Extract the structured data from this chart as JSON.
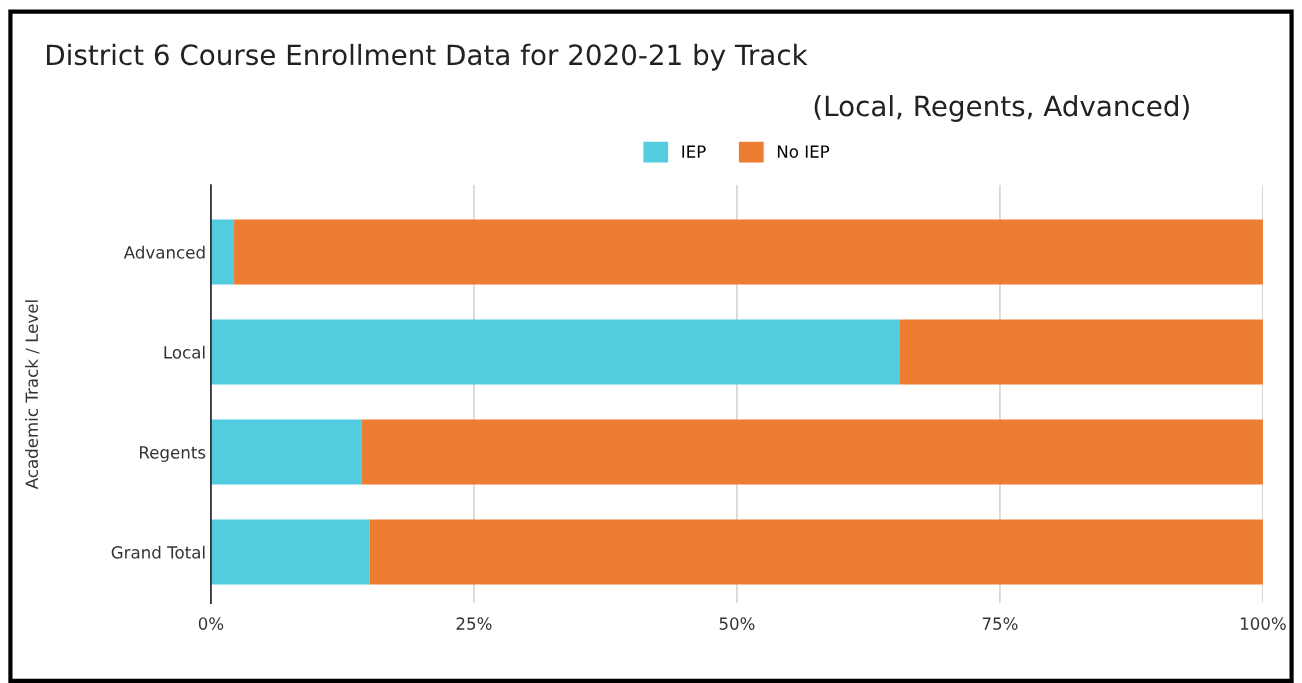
{
  "chart_data": {
    "type": "bar",
    "orientation": "horizontal",
    "stacked": true,
    "title": "District 6 Course Enrollment Data for 2020-21 by Track",
    "subtitle": "(Local, Regents, Advanced)",
    "ylabel": "Academic Track / Level",
    "categories": [
      "Advanced",
      "Local",
      "Regents",
      "Grand Total"
    ],
    "series": [
      {
        "name": "IEP",
        "color": "#53cddf",
        "values": [
          2.2,
          65.5,
          14.3,
          15.1
        ]
      },
      {
        "name": "No IEP",
        "color": "#ed7d31",
        "values": [
          97.8,
          34.5,
          85.7,
          84.9
        ]
      }
    ],
    "xlim": [
      0,
      100
    ],
    "xticks": [
      {
        "value": 0,
        "label": "0%"
      },
      {
        "value": 25,
        "label": "25%"
      },
      {
        "value": 50,
        "label": "50%"
      },
      {
        "value": 75,
        "label": "75%"
      },
      {
        "value": 100,
        "label": "100%"
      }
    ],
    "grid": "x",
    "legend": "top"
  }
}
